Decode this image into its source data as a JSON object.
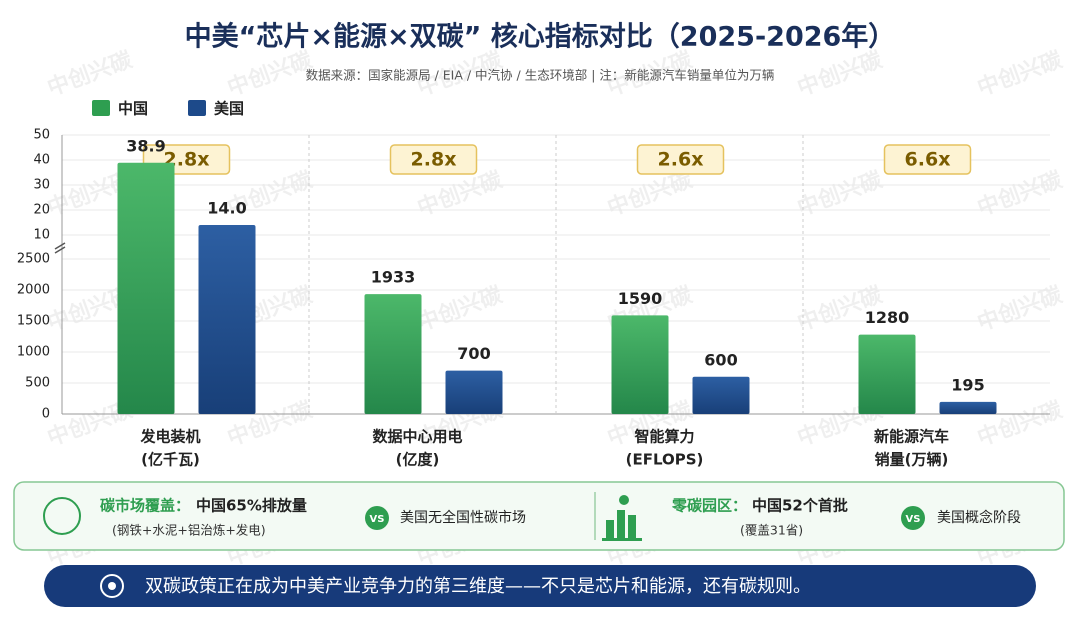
{
  "title": "中美“芯片×能源×双碳” 核心指标对比（2025-2026年）",
  "subtitle": "数据来源：国家能源局 / EIA / 中汽协 / 生态环境部  |  注：新能源汽车销量单位为万辆",
  "watermark": "中创兴碳",
  "chart_data": {
    "type": "bar",
    "series": [
      {
        "name": "中国",
        "color": "#2e9e50"
      },
      {
        "name": "美国",
        "color": "#1d4a8a"
      }
    ],
    "groups": [
      {
        "category": [
          "发电装机",
          "(亿千瓦)"
        ],
        "axis": "y2",
        "values": [
          38.9,
          14.0
        ],
        "value_labels": [
          "38.9",
          "14.0"
        ],
        "ratio": "2.8x"
      },
      {
        "category": [
          "数据中心用电",
          "(亿度)"
        ],
        "values": [
          1933,
          700
        ],
        "ratio": "2.8x"
      },
      {
        "category": [
          "智能算力",
          "(EFLOPS)"
        ],
        "values": [
          1590,
          600
        ],
        "ratio": "2.6x"
      },
      {
        "category": [
          "新能源汽车",
          "销量(万辆)"
        ],
        "values": [
          1280,
          195
        ],
        "ratio": "6.6x"
      }
    ],
    "ylim": [
      0,
      2500
    ],
    "yticks": [
      0,
      500,
      1000,
      1500,
      2000,
      2500
    ],
    "y2lim": [
      0,
      50
    ],
    "y2ticks": [
      10,
      20,
      30,
      40,
      50
    ],
    "grid": true
  },
  "panel": {
    "left": {
      "title": "碳市场覆盖：",
      "text": "中国65%排放量",
      "note": "(钢铁+水泥+铝治炼+发电)",
      "vs": "VS",
      "other": "美国无全国性碳市场"
    },
    "right": {
      "title": "零碳园区：",
      "text": "中国52个首批",
      "note": "(覆盖31省)",
      "vs": "VS",
      "other": "美国概念阶段"
    }
  },
  "banner": "双碳政策正在成为中美产业竞争力的第三维度——不只是芯片和能源，还有碳规则。"
}
